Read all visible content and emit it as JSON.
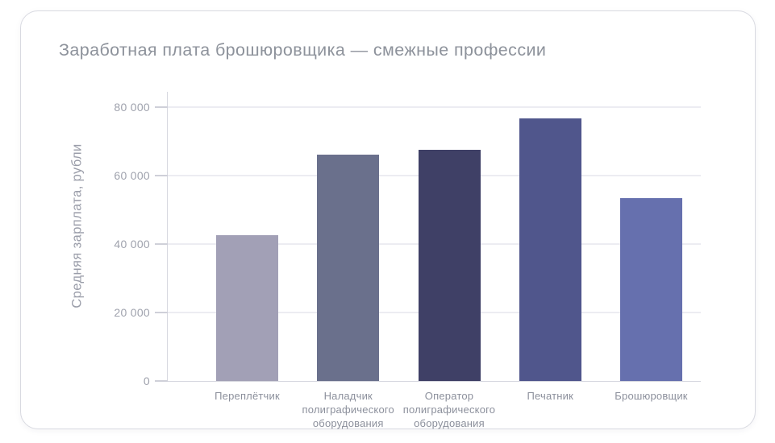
{
  "title": "Заработная плата брошюровщика — смежные профессии",
  "chart_data": {
    "type": "bar",
    "title": "Заработная плата брошюровщика — смежные профессии",
    "xlabel": "",
    "ylabel": "Средняя зарплата, рубли",
    "categories": [
      "Переплётчик",
      "Наладчик полиграфического оборудования",
      "Оператор полиграфического оборудования",
      "Печатник",
      "Брошюровщик"
    ],
    "values": [
      42600,
      66000,
      67600,
      76700,
      53500
    ],
    "bar_colors": [
      "#a2a0b6",
      "#6a708c",
      "#3f4066",
      "#50568c",
      "#6670ae"
    ],
    "ylim": [
      0,
      84700
    ],
    "yticks": [
      0,
      20000,
      40000,
      60000,
      80000
    ],
    "ytick_labels": [
      "0",
      "20 000",
      "40 000",
      "60 000",
      "80 000"
    ],
    "grid": true,
    "legend": false,
    "colors": {
      "grid": "#ececf2",
      "axis": "#d6d7df",
      "tick_mark": "#cfd0d9",
      "ytick_text": "#9fa2ad",
      "xtick_text": "#8c909c",
      "title_text": "#8d929b",
      "card_border": "#d9dae1",
      "background": "#ffffff"
    }
  }
}
